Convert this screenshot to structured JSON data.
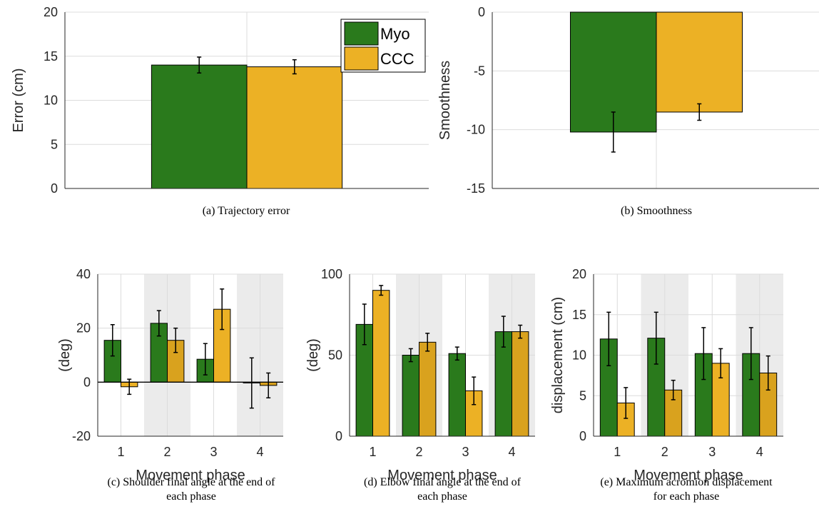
{
  "colors": {
    "myo": "#2a7a1c",
    "ccc": "#ecb125",
    "ccc_dark": "#d9a21e",
    "shade": "#ebebeb",
    "grid": "#dcdcdc"
  },
  "legend": [
    "Myo",
    "CCC"
  ],
  "chart_data": [
    {
      "id": "a",
      "type": "bar",
      "categories": [
        ""
      ],
      "series": [
        {
          "name": "Myo",
          "values": [
            14.0
          ],
          "err": [
            0.9
          ]
        },
        {
          "name": "CCC",
          "values": [
            13.8
          ],
          "err": [
            0.8
          ]
        }
      ],
      "ylabel": "Error (cm)",
      "xlabel": "",
      "ylim": [
        0,
        20
      ],
      "yticks": [
        "0",
        "5",
        "10",
        "15",
        "20"
      ],
      "caption": [
        "(a)  Trajectory error"
      ],
      "legend": "top-right",
      "grid": true
    },
    {
      "id": "b",
      "type": "bar",
      "categories": [
        ""
      ],
      "series": [
        {
          "name": "Myo",
          "values": [
            -10.2
          ],
          "err": [
            1.7
          ]
        },
        {
          "name": "CCC",
          "values": [
            -8.5
          ],
          "err": [
            0.7
          ]
        }
      ],
      "ylabel": "Smoothness",
      "xlabel": "",
      "ylim": [
        -15,
        0
      ],
      "yticks": [
        "-15",
        "-10",
        "-5",
        "0"
      ],
      "caption": [
        "(b)  Smoothness"
      ],
      "grid": true
    },
    {
      "id": "c",
      "type": "bar",
      "categories": [
        "1",
        "2",
        "3",
        "4"
      ],
      "series": [
        {
          "name": "Myo",
          "values": [
            15.5,
            21.8,
            8.5,
            -0.3
          ],
          "err": [
            5.8,
            4.7,
            5.8,
            9.3
          ]
        },
        {
          "name": "CCC",
          "values": [
            -1.7,
            15.5,
            27.0,
            -1.2
          ],
          "err": [
            2.8,
            4.5,
            7.5,
            4.6
          ]
        }
      ],
      "ylabel": "(deg)",
      "xlabel": "Movement phase",
      "ylim": [
        -20,
        40
      ],
      "yticks": [
        "-20",
        "0",
        "20",
        "40"
      ],
      "caption": [
        "(c)  Shoulder final angle at the end of",
        "each phase"
      ],
      "grid": true
    },
    {
      "id": "d",
      "type": "bar",
      "categories": [
        "1",
        "2",
        "3",
        "4"
      ],
      "series": [
        {
          "name": "Myo",
          "values": [
            69,
            50,
            51,
            64.5
          ],
          "err": [
            12.5,
            4,
            4,
            9.5
          ]
        },
        {
          "name": "CCC",
          "values": [
            90,
            58,
            28,
            64.5
          ],
          "err": [
            3,
            5.5,
            8.5,
            4
          ]
        }
      ],
      "ylabel": "(deg)",
      "xlabel": "Movement phase",
      "ylim": [
        0,
        100
      ],
      "yticks": [
        "0",
        "50",
        "100"
      ],
      "caption": [
        "(d)  Elbow final angle at the end of",
        "each phase"
      ],
      "grid": true
    },
    {
      "id": "e",
      "type": "bar",
      "categories": [
        "1",
        "2",
        "3",
        "4"
      ],
      "series": [
        {
          "name": "Myo",
          "values": [
            12.0,
            12.1,
            10.2,
            10.2
          ],
          "err": [
            3.3,
            3.2,
            3.2,
            3.2
          ]
        },
        {
          "name": "CCC",
          "values": [
            4.1,
            5.7,
            9.0,
            7.8
          ],
          "err": [
            1.9,
            1.2,
            1.8,
            2.1
          ]
        }
      ],
      "ylabel": "displacement (cm)",
      "xlabel": "Movement phase",
      "ylim": [
        0,
        20
      ],
      "yticks": [
        "0",
        "5",
        "10",
        "15",
        "20"
      ],
      "caption": [
        "(e)  Maximum acromion displacement",
        "for each phase"
      ],
      "grid": true
    }
  ]
}
